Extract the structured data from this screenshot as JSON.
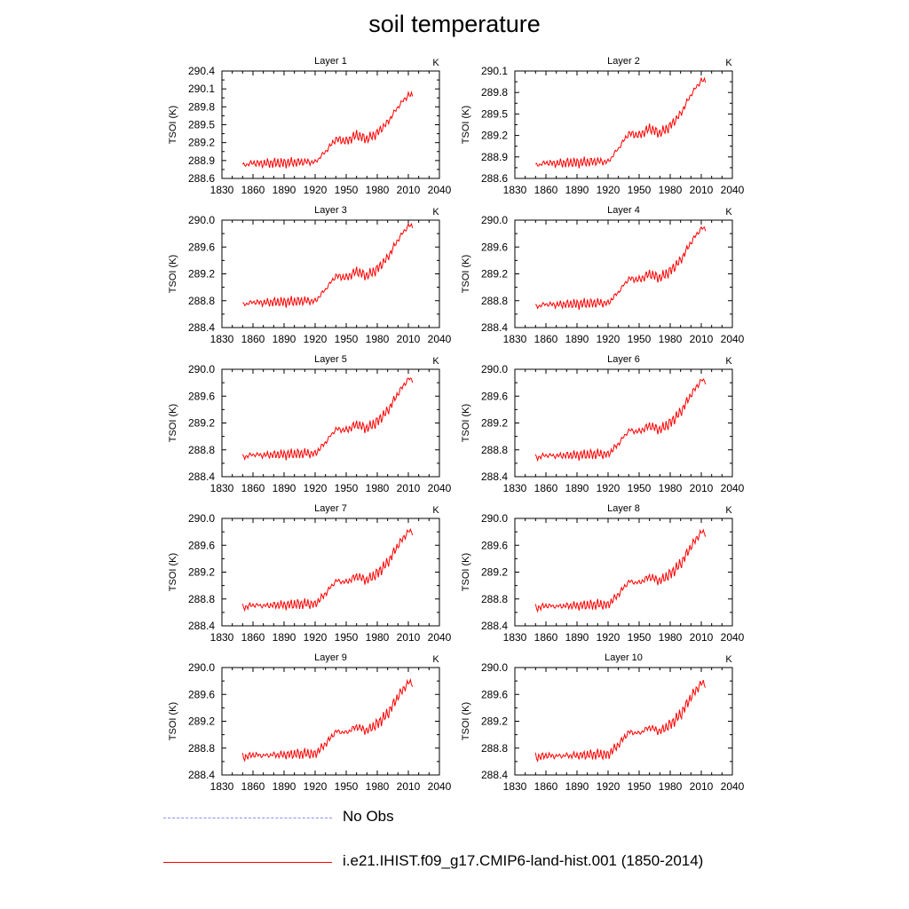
{
  "title": "soil temperature",
  "legend": [
    {
      "label": "No Obs",
      "style": "dashed",
      "color": "#8a8aff"
    },
    {
      "label": "i.e21.IHIST.f09_g17.CMIP6-land-hist.001 (1850-2014)",
      "style": "solid",
      "color": "#ff0000"
    }
  ],
  "chart_data": [
    {
      "type": "line",
      "title": "Layer 1",
      "units": "K",
      "ylabel": "TSOI  (K)",
      "xlim": [
        1830,
        2040
      ],
      "xticks": [
        1830,
        1860,
        1890,
        1920,
        1950,
        1980,
        2010,
        2040
      ],
      "ylim": [
        288.6,
        290.4
      ],
      "yticks": [
        "288.6",
        "288.9",
        "289.2",
        "289.5",
        "289.8",
        "290.1",
        "290.4"
      ],
      "series": [
        {
          "color": "#ff0000",
          "x": [
            1850,
            1860,
            1870,
            1880,
            1890,
            1900,
            1910,
            1920,
            1930,
            1940,
            1950,
            1960,
            1970,
            1980,
            1990,
            2000,
            2010,
            2014
          ],
          "values": [
            288.82,
            288.86,
            288.85,
            288.86,
            288.86,
            288.87,
            288.88,
            288.87,
            289.05,
            289.26,
            289.22,
            289.33,
            289.26,
            289.36,
            289.54,
            289.8,
            290.0,
            289.98
          ]
        }
      ]
    },
    {
      "type": "line",
      "title": "Layer 2",
      "units": "K",
      "ylabel": "TSOI  (K)",
      "xlim": [
        1830,
        2040
      ],
      "xticks": [
        1830,
        1860,
        1890,
        1920,
        1950,
        1980,
        2010,
        2040
      ],
      "ylim": [
        288.6,
        290.1
      ],
      "yticks": [
        "288.6",
        "288.9",
        "289.2",
        "289.5",
        "289.8",
        "290.1"
      ],
      "series": [
        {
          "color": "#ff0000",
          "x": [
            1850,
            1860,
            1870,
            1880,
            1890,
            1900,
            1910,
            1920,
            1930,
            1940,
            1950,
            1960,
            1970,
            1980,
            1990,
            2000,
            2010,
            2014
          ],
          "values": [
            288.78,
            288.82,
            288.81,
            288.82,
            288.82,
            288.83,
            288.84,
            288.83,
            289.02,
            289.23,
            289.2,
            289.3,
            289.23,
            289.33,
            289.5,
            289.77,
            289.97,
            289.95
          ]
        }
      ]
    },
    {
      "type": "line",
      "title": "Layer 3",
      "units": "K",
      "ylabel": "TSOI  (K)",
      "xlim": [
        1830,
        2040
      ],
      "xticks": [
        1830,
        1860,
        1890,
        1920,
        1950,
        1980,
        2010,
        2040
      ],
      "ylim": [
        288.4,
        290.0
      ],
      "yticks": [
        "288.4",
        "288.8",
        "289.2",
        "289.6",
        "290.0"
      ],
      "series": [
        {
          "color": "#ff0000",
          "x": [
            1850,
            1860,
            1870,
            1880,
            1890,
            1900,
            1910,
            1920,
            1930,
            1940,
            1950,
            1960,
            1970,
            1980,
            1990,
            2000,
            2010,
            2014
          ],
          "values": [
            288.74,
            288.78,
            288.77,
            288.78,
            288.78,
            288.79,
            288.8,
            288.79,
            288.97,
            289.17,
            289.14,
            289.24,
            289.17,
            289.27,
            289.44,
            289.71,
            289.92,
            289.9
          ]
        }
      ]
    },
    {
      "type": "line",
      "title": "Layer 4",
      "units": "K",
      "ylabel": "TSOI  (K)",
      "xlim": [
        1830,
        2040
      ],
      "xticks": [
        1830,
        1860,
        1890,
        1920,
        1950,
        1980,
        2010,
        2040
      ],
      "ylim": [
        288.4,
        290.0
      ],
      "yticks": [
        "288.4",
        "288.8",
        "289.2",
        "289.6",
        "290.0"
      ],
      "series": [
        {
          "color": "#ff0000",
          "x": [
            1850,
            1860,
            1870,
            1880,
            1890,
            1900,
            1910,
            1920,
            1930,
            1940,
            1950,
            1960,
            1970,
            1980,
            1990,
            2000,
            2010,
            2014
          ],
          "values": [
            288.71,
            288.75,
            288.74,
            288.75,
            288.75,
            288.76,
            288.77,
            288.76,
            288.93,
            289.13,
            289.11,
            289.2,
            289.14,
            289.24,
            289.4,
            289.67,
            289.88,
            289.86
          ]
        }
      ]
    },
    {
      "type": "line",
      "title": "Layer 5",
      "units": "K",
      "ylabel": "TSOI  (K)",
      "xlim": [
        1830,
        2040
      ],
      "xticks": [
        1830,
        1860,
        1890,
        1920,
        1950,
        1980,
        2010,
        2040
      ],
      "ylim": [
        288.4,
        290.0
      ],
      "yticks": [
        "288.4",
        "288.8",
        "289.2",
        "289.6",
        "290.0"
      ],
      "series": [
        {
          "color": "#ff0000",
          "x": [
            1850,
            1860,
            1870,
            1880,
            1890,
            1900,
            1910,
            1920,
            1930,
            1940,
            1950,
            1960,
            1970,
            1980,
            1990,
            2000,
            2010,
            2014
          ],
          "values": [
            288.69,
            288.73,
            288.72,
            288.73,
            288.73,
            288.74,
            288.75,
            288.74,
            288.91,
            289.11,
            289.09,
            289.18,
            289.12,
            289.22,
            289.38,
            289.64,
            289.86,
            289.83
          ]
        }
      ]
    },
    {
      "type": "line",
      "title": "Layer 6",
      "units": "K",
      "ylabel": "TSOI  (K)",
      "xlim": [
        1830,
        2040
      ],
      "xticks": [
        1830,
        1860,
        1890,
        1920,
        1950,
        1980,
        2010,
        2040
      ],
      "ylim": [
        288.4,
        290.0
      ],
      "yticks": [
        "288.4",
        "288.8",
        "289.2",
        "289.6",
        "290.0"
      ],
      "series": [
        {
          "color": "#ff0000",
          "x": [
            1850,
            1860,
            1870,
            1880,
            1890,
            1900,
            1910,
            1920,
            1930,
            1940,
            1950,
            1960,
            1970,
            1980,
            1990,
            2000,
            2010,
            2014
          ],
          "values": [
            288.68,
            288.72,
            288.71,
            288.72,
            288.72,
            288.73,
            288.74,
            288.73,
            288.89,
            289.09,
            289.07,
            289.16,
            289.1,
            289.2,
            289.36,
            289.62,
            289.84,
            289.81
          ]
        }
      ]
    },
    {
      "type": "line",
      "title": "Layer 7",
      "units": "K",
      "ylabel": "TSOI  (K)",
      "xlim": [
        1830,
        2040
      ],
      "xticks": [
        1830,
        1860,
        1890,
        1920,
        1950,
        1980,
        2010,
        2040
      ],
      "ylim": [
        288.4,
        290.0
      ],
      "yticks": [
        "288.4",
        "288.8",
        "289.2",
        "289.6",
        "290.0"
      ],
      "series": [
        {
          "color": "#ff0000",
          "x": [
            1850,
            1860,
            1870,
            1880,
            1890,
            1900,
            1910,
            1920,
            1930,
            1940,
            1950,
            1960,
            1970,
            1980,
            1990,
            2000,
            2010,
            2014
          ],
          "values": [
            288.67,
            288.71,
            288.7,
            288.71,
            288.71,
            288.72,
            288.73,
            288.72,
            288.88,
            289.07,
            289.05,
            289.14,
            289.08,
            289.18,
            289.34,
            289.6,
            289.81,
            289.79
          ]
        }
      ]
    },
    {
      "type": "line",
      "title": "Layer 8",
      "units": "K",
      "ylabel": "TSOI  (K)",
      "xlim": [
        1830,
        2040
      ],
      "xticks": [
        1830,
        1860,
        1890,
        1920,
        1950,
        1980,
        2010,
        2040
      ],
      "ylim": [
        288.4,
        290.0
      ],
      "yticks": [
        "288.4",
        "288.8",
        "289.2",
        "289.6",
        "290.0"
      ],
      "series": [
        {
          "color": "#ff0000",
          "x": [
            1850,
            1860,
            1870,
            1880,
            1890,
            1900,
            1910,
            1920,
            1930,
            1940,
            1950,
            1960,
            1970,
            1980,
            1990,
            2000,
            2010,
            2014
          ],
          "values": [
            288.66,
            288.7,
            288.69,
            288.7,
            288.7,
            288.71,
            288.72,
            288.71,
            288.87,
            289.06,
            289.04,
            289.13,
            289.07,
            289.17,
            289.32,
            289.58,
            289.8,
            289.77
          ]
        }
      ]
    },
    {
      "type": "line",
      "title": "Layer 9",
      "units": "K",
      "ylabel": "TSOI  (K)",
      "xlim": [
        1830,
        2040
      ],
      "xticks": [
        1830,
        1860,
        1890,
        1920,
        1950,
        1980,
        2010,
        2040
      ],
      "ylim": [
        288.4,
        290.0
      ],
      "yticks": [
        "288.4",
        "288.8",
        "289.2",
        "289.6",
        "290.0"
      ],
      "series": [
        {
          "color": "#ff0000",
          "x": [
            1850,
            1860,
            1870,
            1880,
            1890,
            1900,
            1910,
            1920,
            1930,
            1940,
            1950,
            1960,
            1970,
            1980,
            1990,
            2000,
            2010,
            2014
          ],
          "values": [
            288.66,
            288.7,
            288.69,
            288.7,
            288.7,
            288.71,
            288.72,
            288.71,
            288.86,
            289.05,
            289.03,
            289.12,
            289.06,
            289.16,
            289.31,
            289.57,
            289.78,
            289.76
          ]
        }
      ]
    },
    {
      "type": "line",
      "title": "Layer 10",
      "units": "K",
      "ylabel": "TSOI  (K)",
      "xlim": [
        1830,
        2040
      ],
      "xticks": [
        1830,
        1860,
        1890,
        1920,
        1950,
        1980,
        2010,
        2040
      ],
      "ylim": [
        288.4,
        290.0
      ],
      "yticks": [
        "288.4",
        "288.8",
        "289.2",
        "289.6",
        "290.0"
      ],
      "series": [
        {
          "color": "#ff0000",
          "x": [
            1850,
            1860,
            1870,
            1880,
            1890,
            1900,
            1910,
            1920,
            1930,
            1940,
            1950,
            1960,
            1970,
            1980,
            1990,
            2000,
            2010,
            2014
          ],
          "values": [
            288.66,
            288.69,
            288.68,
            288.69,
            288.69,
            288.7,
            288.71,
            288.7,
            288.85,
            289.04,
            289.02,
            289.11,
            289.05,
            289.15,
            289.3,
            289.56,
            289.77,
            289.75
          ]
        }
      ]
    }
  ]
}
